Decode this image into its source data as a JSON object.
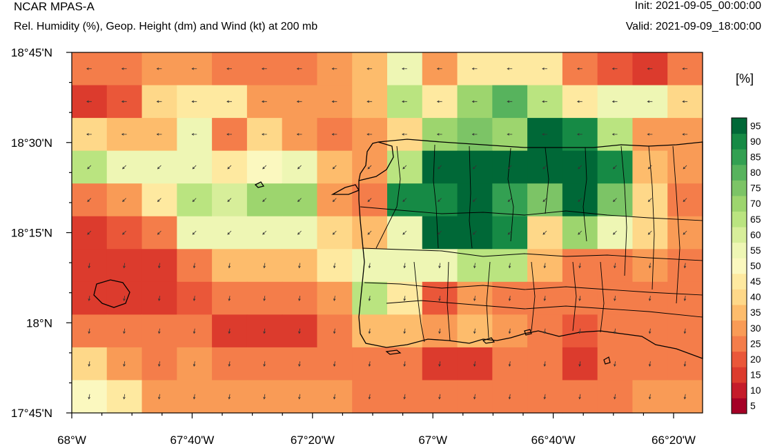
{
  "header": {
    "model": "NCAR MPAS-A",
    "description": "Rel. Humidity (%), Geop. Height (dm) and Wind (kt) at 200 mb",
    "init": "Init: 2021-09-05_00:00:00",
    "valid": "Valid: 2021-09-09_18:00:00"
  },
  "units_label": "[%]",
  "axes": {
    "y_ticks": [
      "18°45'N",
      "18°30'N",
      "18°15'N",
      "18°N",
      "17°45'N"
    ],
    "x_ticks": [
      "68°W",
      "67°40'W",
      "67°20'W",
      "67°W",
      "66°40'W",
      "66°20'W"
    ]
  },
  "colorbar": {
    "labels": [
      "5",
      "10",
      "15",
      "20",
      "25",
      "30",
      "35",
      "40",
      "45",
      "50",
      "55",
      "60",
      "65",
      "70",
      "75",
      "80",
      "85",
      "90",
      "95"
    ],
    "colors": [
      "#a50026",
      "#c51b2a",
      "#dc3b2d",
      "#ea5739",
      "#f47d4a",
      "#f99b56",
      "#fdbc6c",
      "#fed889",
      "#fee9a0",
      "#fbf8bf",
      "#eef6b4",
      "#d7ee9a",
      "#bae480",
      "#9dd56e",
      "#7cc466",
      "#57b35d",
      "#33a052",
      "#168a45",
      "#006837"
    ]
  },
  "grid": {
    "rows": [
      [
        24,
        24,
        26,
        26,
        24,
        24,
        24,
        26,
        30,
        54,
        26,
        40,
        40,
        40,
        24,
        18,
        14,
        22
      ],
      [
        14,
        18,
        36,
        42,
        40,
        26,
        26,
        26,
        32,
        60,
        40,
        66,
        76,
        62,
        42,
        50,
        50,
        38
      ],
      [
        36,
        34,
        34,
        50,
        22,
        36,
        28,
        24,
        28,
        36,
        66,
        72,
        68,
        96,
        86,
        60,
        28,
        28
      ],
      [
        62,
        52,
        52,
        52,
        42,
        46,
        54,
        30,
        28,
        62,
        96,
        96,
        96,
        96,
        96,
        86,
        34,
        26
      ],
      [
        22,
        28,
        40,
        62,
        56,
        66,
        66,
        26,
        24,
        86,
        86,
        96,
        82,
        70,
        96,
        72,
        38,
        24
      ],
      [
        12,
        18,
        22,
        50,
        52,
        52,
        52,
        38,
        32,
        52,
        92,
        96,
        86,
        36,
        66,
        50,
        36,
        28
      ],
      [
        14,
        14,
        14,
        20,
        32,
        32,
        32,
        44,
        52,
        50,
        52,
        62,
        62,
        34,
        22,
        24,
        28,
        22
      ],
      [
        14,
        14,
        14,
        16,
        20,
        20,
        20,
        26,
        60,
        42,
        18,
        28,
        24,
        22,
        20,
        22,
        24,
        20
      ],
      [
        20,
        20,
        20,
        22,
        14,
        14,
        14,
        24,
        30,
        30,
        26,
        30,
        28,
        24,
        16,
        22,
        24,
        20
      ],
      [
        36,
        28,
        24,
        28,
        24,
        24,
        24,
        24,
        22,
        22,
        14,
        14,
        24,
        24,
        14,
        24,
        24,
        24
      ],
      [
        48,
        44,
        26,
        26,
        26,
        26,
        26,
        26,
        22,
        22,
        22,
        22,
        20,
        20,
        22,
        24,
        28,
        28
      ]
    ]
  }
}
